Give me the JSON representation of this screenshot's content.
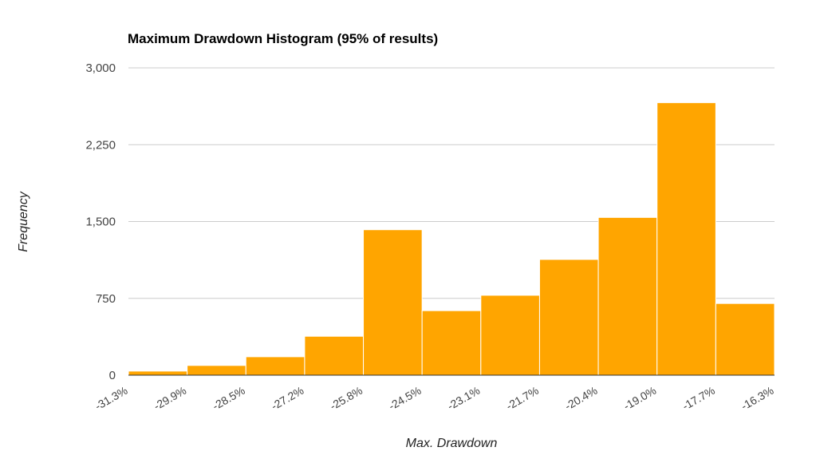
{
  "chart_data": {
    "type": "bar",
    "title": "Maximum Drawdown Histogram (95% of results)",
    "xlabel": "Max. Drawdown",
    "ylabel": "Frequency",
    "ylim": [
      0,
      3000
    ],
    "y_ticks": [
      0,
      750,
      1500,
      2250,
      3000
    ],
    "y_tick_labels": [
      "0",
      "750",
      "1,500",
      "2,250",
      "3,000"
    ],
    "bin_edges": [
      "-31.3%",
      "-29.9%",
      "-28.5%",
      "-27.2%",
      "-25.8%",
      "-24.5%",
      "-23.1%",
      "-21.7%",
      "-20.4%",
      "-19.0%",
      "-17.7%",
      "-16.3%"
    ],
    "values": [
      40,
      95,
      180,
      380,
      1420,
      630,
      780,
      1130,
      1540,
      2660,
      700
    ],
    "bar_color": "#ffa500",
    "grid": true,
    "legend": "none"
  }
}
